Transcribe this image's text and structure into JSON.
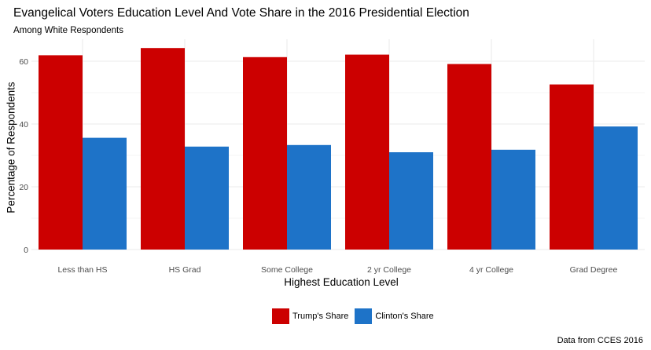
{
  "colors": {
    "trump": "#cc0000",
    "clinton": "#1e73c8",
    "grid": "#ebebeb",
    "axis_text": "#4d4d4d"
  },
  "chart_data": {
    "type": "bar",
    "title": "Evangelical Voters Education Level And Vote Share in the 2016 Presidential Election",
    "subtitle": "Among White Respondents",
    "xlabel": "Highest Education Level",
    "ylabel": "Percentage of Respondents",
    "caption": "Data from CCES 2016",
    "categories": [
      "Less than HS",
      "HS Grad",
      "Some College",
      "2 yr College",
      "4 yr College",
      "Grad Degree"
    ],
    "series": [
      {
        "name": "Trump's Share",
        "color": "#cc0000",
        "values": [
          61.9,
          64.2,
          61.3,
          62.1,
          59.1,
          52.6
        ]
      },
      {
        "name": "Clinton's Share",
        "color": "#1e73c8",
        "values": [
          35.6,
          32.8,
          33.3,
          31.0,
          31.8,
          39.2
        ]
      }
    ],
    "yticks": [
      0,
      20,
      40,
      60
    ],
    "ylim": [
      0,
      67
    ],
    "grid": true,
    "legend_position": "bottom"
  }
}
